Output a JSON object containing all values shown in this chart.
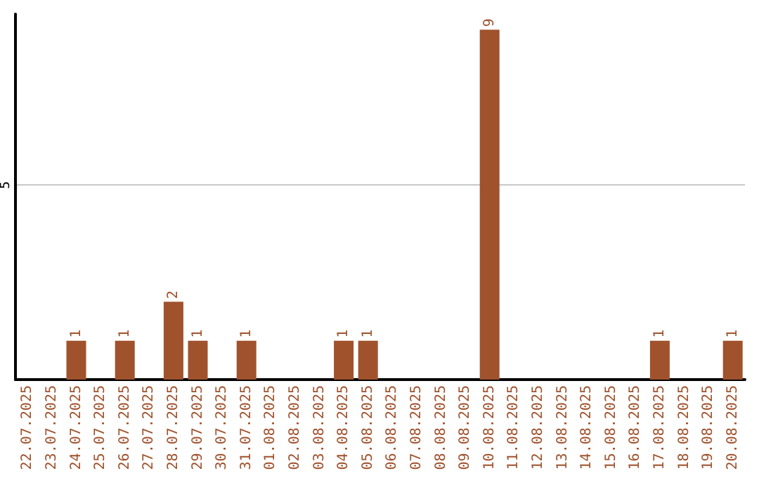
{
  "chart_data": {
    "type": "bar",
    "categories": [
      "22.07.2025",
      "23.07.2025",
      "24.07.2025",
      "25.07.2025",
      "26.07.2025",
      "27.07.2025",
      "28.07.2025",
      "29.07.2025",
      "30.07.2025",
      "31.07.2025",
      "01.08.2025",
      "02.08.2025",
      "03.08.2025",
      "04.08.2025",
      "05.08.2025",
      "06.08.2025",
      "07.08.2025",
      "08.08.2025",
      "09.08.2025",
      "10.08.2025",
      "11.08.2025",
      "12.08.2025",
      "13.08.2025",
      "14.08.2025",
      "15.08.2025",
      "16.08.2025",
      "17.08.2025",
      "18.08.2025",
      "19.08.2025",
      "20.08.2025"
    ],
    "values": [
      0,
      0,
      1,
      0,
      1,
      0,
      2,
      1,
      0,
      1,
      0,
      0,
      0,
      1,
      1,
      0,
      0,
      0,
      0,
      9,
      0,
      0,
      0,
      0,
      0,
      0,
      1,
      0,
      0,
      1
    ],
    "value_labels": [
      null,
      null,
      "1",
      null,
      "1",
      null,
      "2",
      "1",
      null,
      "1",
      null,
      null,
      null,
      "1",
      "1",
      null,
      null,
      null,
      null,
      "9",
      null,
      null,
      null,
      null,
      null,
      null,
      "1",
      null,
      null,
      "1"
    ],
    "color": "#a0522d",
    "ylim": [
      0,
      9.4
    ],
    "yticks": [
      5
    ],
    "grid": "y"
  }
}
